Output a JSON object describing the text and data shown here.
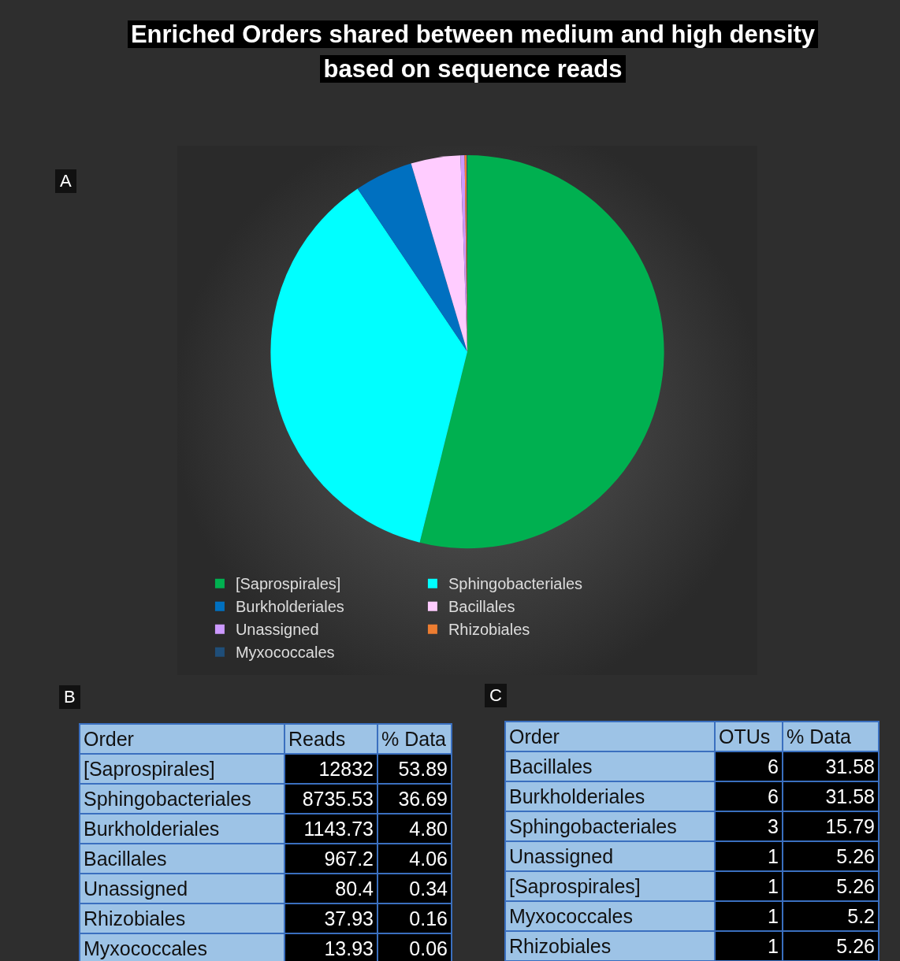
{
  "chart_data": [
    {
      "type": "pie",
      "title": "Enriched Orders shared between medium and high density based on sequence reads",
      "annotations": [
        "A"
      ],
      "legend": "bottom",
      "categories": [
        "[Saprospirales]",
        "Sphingobacteriales",
        "Burkholderiales",
        "Bacillales",
        "Unassigned",
        "Rhizobiales",
        "Myxococcales"
      ],
      "values": [
        53.89,
        36.69,
        4.8,
        4.06,
        0.34,
        0.16,
        0.06
      ],
      "colors": [
        "#00b050",
        "#00ffff",
        "#0070c0",
        "#ffccff",
        "#cc99ff",
        "#ed7d31",
        "#1f4e79"
      ]
    },
    {
      "type": "other",
      "annotations": [
        "B"
      ],
      "xlabel": "Order",
      "data_labels": true,
      "categories": [
        "[Saprospirales]",
        "Sphingobacteriales",
        "Burkholderiales",
        "Bacillales",
        "Unassigned",
        "Rhizobiales",
        "Myxococcales"
      ],
      "series": [
        {
          "name": "Reads",
          "values": [
            12832,
            8735.53,
            1143.73,
            967.2,
            80.4,
            37.93,
            13.93
          ]
        },
        {
          "name": "% Data",
          "values": [
            53.89,
            36.69,
            4.8,
            4.06,
            0.34,
            0.16,
            0.06
          ],
          "value_labels": [
            "53.89",
            "36.69",
            "4.80",
            "4.06",
            "0.34",
            "0.16",
            "0.06"
          ]
        }
      ]
    },
    {
      "type": "other",
      "annotations": [
        "C"
      ],
      "xlabel": "Order",
      "data_labels": true,
      "categories": [
        "Bacillales",
        "Burkholderiales",
        "Sphingobacteriales",
        "Unassigned",
        "[Saprospirales]",
        "Myxococcales",
        "Rhizobiales"
      ],
      "series": [
        {
          "name": "OTUs",
          "values": [
            6,
            6,
            3,
            1,
            1,
            1,
            1
          ]
        },
        {
          "name": "% Data",
          "values": [
            31.58,
            31.58,
            15.79,
            5.26,
            5.26,
            5.2,
            5.26
          ]
        }
      ]
    }
  ]
}
